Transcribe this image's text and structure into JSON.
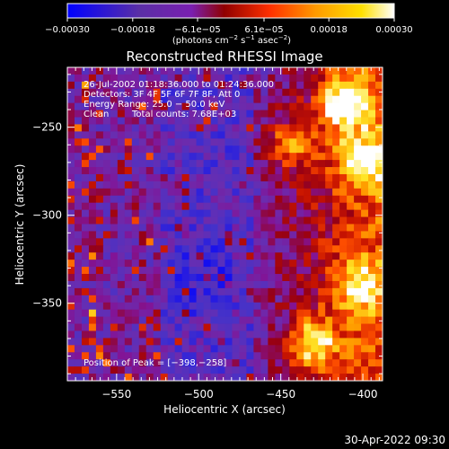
{
  "chart_data": {
    "type": "heatmap",
    "title": "Reconstructed RHESSI Image",
    "xlabel": "Heliocentric X (arcsec)",
    "ylabel": "Heliocentric Y (arcsec)",
    "xlim": [
      -580,
      -388
    ],
    "ylim": [
      -394,
      -216
    ],
    "xticks": [
      -550,
      -500,
      -450,
      -400
    ],
    "xtick_labels": [
      "−550",
      "−500",
      "−450",
      "−400"
    ],
    "yticks": [
      -250,
      -300,
      -350
    ],
    "ytick_labels": [
      "−250",
      "−300",
      "−350"
    ],
    "colorbar": {
      "min": -0.0003,
      "max": 0.0003,
      "ticks": [
        -0.0003,
        -0.00018,
        -6.1e-05,
        6.1e-05,
        0.00018,
        0.0003
      ],
      "tick_labels": [
        "−0.00030",
        "−0.00018",
        "−6.1e−05",
        "6.1e−05",
        "0.00018",
        "0.00030"
      ],
      "unit_main": "(photons cm",
      "unit_exp1": "−2",
      "unit_mid": " s",
      "unit_exp2": "−1",
      "unit_mid2": " asec",
      "unit_exp3": "−2",
      "unit_end": ")",
      "colormap": [
        "#0000ff",
        "#5a2fa6",
        "#7a1fb0",
        "#c00000",
        "#ff4000",
        "#ff9a00",
        "#ffe000",
        "#ffffff"
      ]
    },
    "annotations": {
      "time_range": "26-Jul-2002 01:18:36.000 to 01:24:36.000",
      "detectors": "Detectors: 3F 4F 5F 6F 7F 8F, Att 0",
      "energy_range": "Energy Range: 25.0 − 50.0 keV",
      "clean_label": "Clean",
      "total_counts": "Total counts: 7.68E+03",
      "peak_position": "Position of Peak = [−398,−258]"
    },
    "grid": false
  },
  "footer": {
    "timestamp": "30-Apr-2022 09:30"
  }
}
